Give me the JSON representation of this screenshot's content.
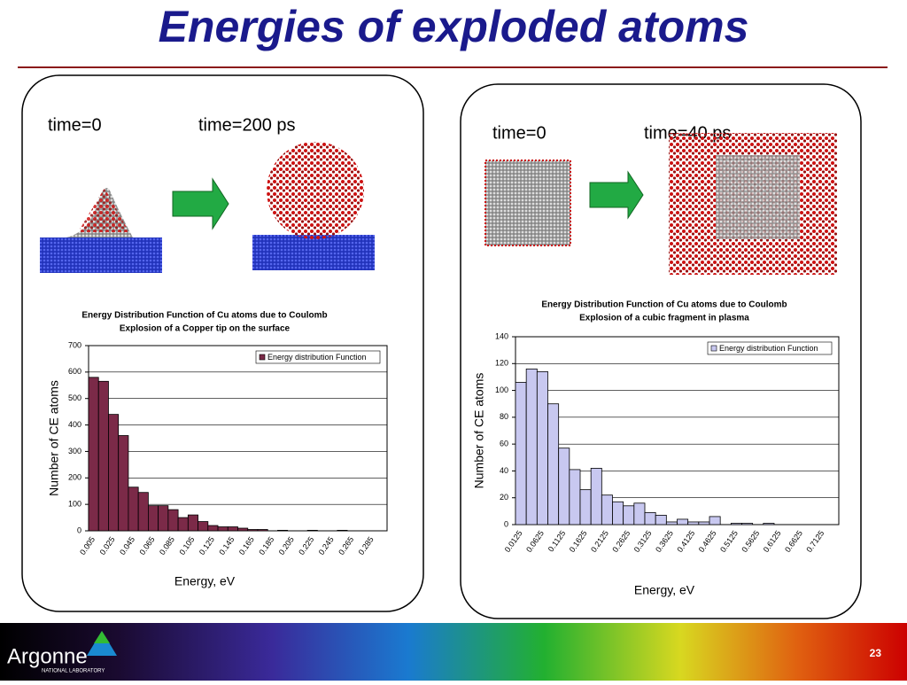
{
  "slide": {
    "title": "Energies of exploded atoms",
    "number": "23",
    "logo": {
      "name": "Argonne",
      "subtitle": "NATIONAL LABORATORY"
    }
  },
  "panels": [
    {
      "labels": [
        "time=0",
        "time=200 ps"
      ]
    },
    {
      "labels": [
        "time=0",
        "time=40 ps"
      ]
    }
  ],
  "chart_data": [
    {
      "type": "bar",
      "title": [
        "Energy Distribution Function of Cu atoms due to Coulomb",
        "Explosion of a Copper tip on the surface"
      ],
      "x_label": "Energy, eV",
      "y_label": "Number of CE atoms",
      "categories": [
        "0.005",
        null,
        "0.025",
        null,
        "0.045",
        null,
        "0.065",
        null,
        "0.085",
        null,
        "0.105",
        null,
        "0.125",
        null,
        "0.145",
        null,
        "0.165",
        null,
        "0.185",
        null,
        "0.205",
        null,
        "0.225",
        null,
        "0.245",
        null,
        "0.265",
        null,
        "0.285",
        null
      ],
      "series": [
        {
          "name": "Energy distribution Function",
          "color": "#7b2a48",
          "values": [
            580,
            565,
            440,
            360,
            165,
            145,
            95,
            95,
            80,
            50,
            60,
            35,
            20,
            15,
            15,
            10,
            5,
            5,
            0,
            2,
            0,
            0,
            2,
            0,
            0,
            2,
            0,
            0,
            0,
            0
          ]
        }
      ],
      "ylim": [
        0,
        700
      ],
      "yticks": [
        0,
        100,
        200,
        300,
        400,
        500,
        600,
        700
      ],
      "grid": true,
      "legend": "upper right"
    },
    {
      "type": "bar",
      "title": [
        "Energy Distribution Function of Cu atoms due to Coulomb",
        "Explosion of a cubic fragment in plasma"
      ],
      "x_label": "Energy, eV",
      "y_label": "Number of CE atoms",
      "categories": [
        "0.0125",
        null,
        "0.0625",
        null,
        "0.1125",
        null,
        "0.1625",
        null,
        "0.2125",
        null,
        "0.2625",
        null,
        "0.3125",
        null,
        "0.3625",
        null,
        "0.4125",
        null,
        "0.4625",
        null,
        "0.5125",
        null,
        "0.5625",
        null,
        "0.6125",
        null,
        "0.6625",
        null,
        "0.7125",
        null
      ],
      "series": [
        {
          "name": "Energy distribution Function",
          "color": "#c8c8f0",
          "values": [
            106,
            116,
            114,
            90,
            57,
            41,
            26,
            42,
            22,
            17,
            14,
            16,
            9,
            7,
            2,
            4,
            2,
            2,
            6,
            0,
            1,
            1,
            0,
            1,
            0,
            0,
            0,
            0,
            0,
            0
          ]
        }
      ],
      "ylim": [
        0,
        140
      ],
      "yticks": [
        0,
        20,
        40,
        60,
        80,
        100,
        120,
        140
      ],
      "grid": true,
      "legend": "upper right"
    }
  ]
}
